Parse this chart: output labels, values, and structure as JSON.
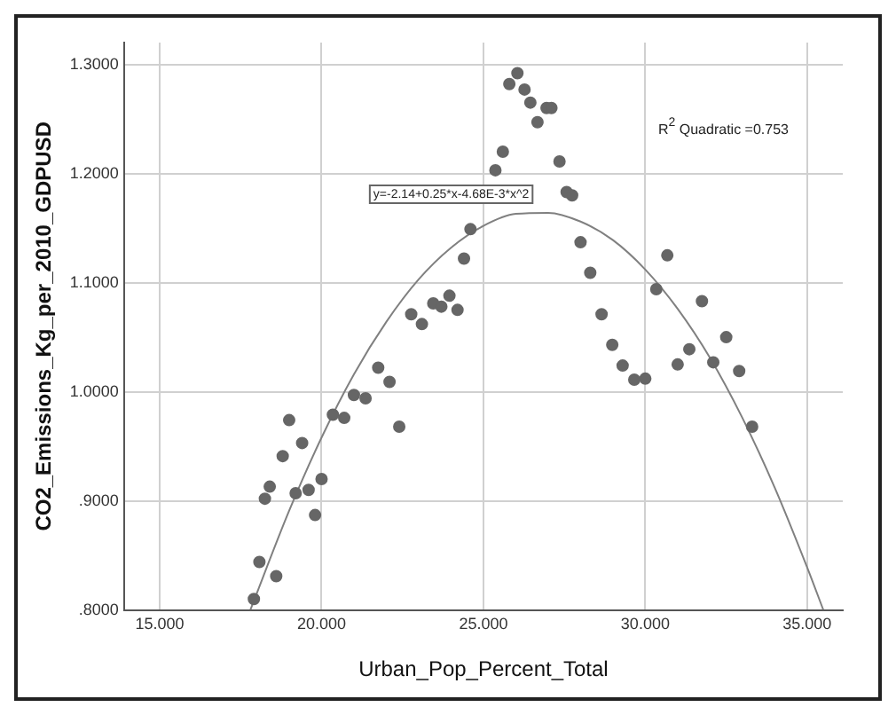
{
  "chart_data": {
    "type": "scatter",
    "xlabel": "Urban_Pop_Percent_Total",
    "ylabel": "CO2_Emissions_Kg_per_2010_GDPUSD",
    "annotations": [
      "y=-2.14+0.25*x-4.68E-3*x^2",
      "R$^{2}$ Quadratic =0.753"
    ],
    "xlim": [
      13.9,
      36.1
    ],
    "ylim": [
      0.8,
      1.32
    ],
    "xticks": [
      {
        "value": 15,
        "label": "15.000"
      },
      {
        "value": 20,
        "label": "20.000"
      },
      {
        "value": 25,
        "label": "25.000"
      },
      {
        "value": 30,
        "label": "30.000"
      },
      {
        "value": 35,
        "label": "35.000"
      }
    ],
    "yticks": [
      {
        "value": 0.8,
        "label": ".8000"
      },
      {
        "value": 0.9,
        "label": ".9000"
      },
      {
        "value": 1.0,
        "label": "1.0000"
      },
      {
        "value": 1.1,
        "label": "1.1000"
      },
      {
        "value": 1.2,
        "label": "1.2000"
      },
      {
        "value": 1.3,
        "label": "1.3000"
      }
    ],
    "grid": true,
    "legend": false,
    "marker": "circle",
    "series": [
      {
        "color": "#666666",
        "x": [
          17.91,
          18.08,
          18.6,
          18.25,
          18.4,
          18.8,
          19.0,
          19.2,
          19.4,
          19.6,
          19.8,
          20.0,
          20.35,
          20.7,
          21.0,
          21.36,
          21.75,
          22.1,
          22.4,
          22.77,
          23.1,
          23.45,
          23.7,
          23.95,
          24.2,
          24.4,
          24.6,
          25.37,
          25.6,
          25.8,
          26.05,
          26.27,
          26.45,
          26.67,
          26.95,
          27.1,
          27.35,
          27.57,
          27.74,
          28.0,
          28.3,
          28.65,
          28.98,
          29.3,
          29.66,
          30.0,
          30.34,
          30.68,
          31.0,
          31.36,
          31.75,
          32.1,
          32.5,
          32.9,
          33.3
        ],
        "values": [
          0.81,
          0.844,
          0.831,
          0.902,
          0.913,
          0.941,
          0.974,
          0.907,
          0.953,
          0.91,
          0.887,
          0.92,
          0.979,
          0.976,
          0.997,
          0.994,
          1.022,
          1.009,
          0.968,
          1.071,
          1.062,
          1.081,
          1.078,
          1.088,
          1.075,
          1.122,
          1.149,
          1.203,
          1.22,
          1.282,
          1.292,
          1.277,
          1.265,
          1.247,
          1.26,
          1.26,
          1.211,
          1.183,
          1.18,
          1.137,
          1.109,
          1.071,
          1.043,
          1.024,
          1.011,
          1.012,
          1.094,
          1.125,
          1.025,
          1.039,
          1.083,
          1.027,
          1.05,
          1.019,
          0.968
        ]
      },
      {
        "type": "line",
        "color": "#808080",
        "marker": "none",
        "x": [
          17.8,
          19,
          20,
          21,
          22,
          23,
          24,
          25,
          26,
          27,
          28,
          29,
          30,
          31,
          32,
          33,
          34,
          35,
          35.5
        ],
        "values": [
          0.8,
          0.891,
          0.958,
          1.016,
          1.064,
          1.103,
          1.132,
          1.152,
          1.163,
          1.164,
          1.156,
          1.139,
          1.112,
          1.076,
          1.031,
          0.976,
          0.912,
          0.839,
          0.8
        ]
      }
    ]
  }
}
